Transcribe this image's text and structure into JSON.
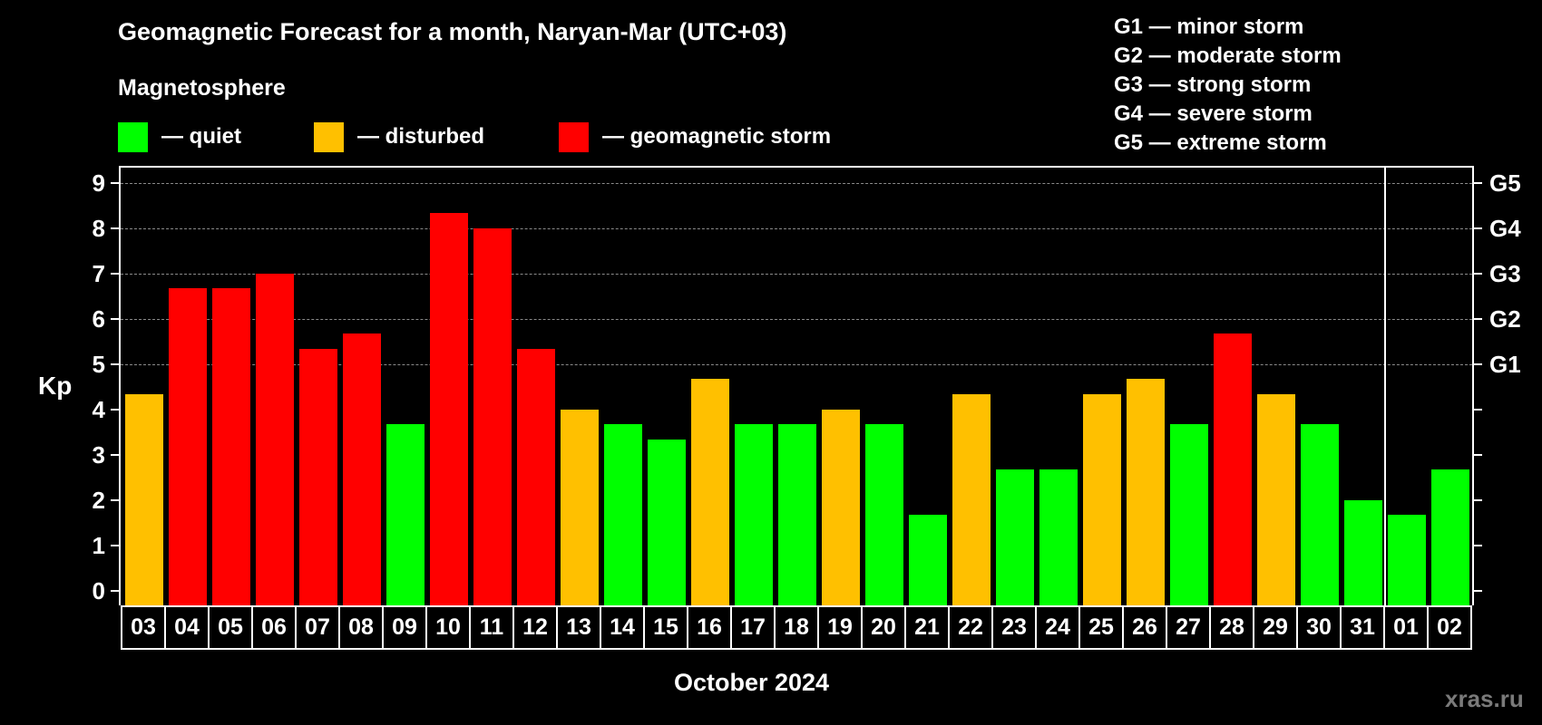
{
  "header": {
    "title": "Geomagnetic Forecast for a month, Naryan-Mar (UTC+03)",
    "subtitle": "Magnetosphere"
  },
  "legend": [
    {
      "label": "— quiet",
      "color": "#00ff00"
    },
    {
      "label": "— disturbed",
      "color": "#ffc000"
    },
    {
      "label": "— geomagnetic storm",
      "color": "#ff0000"
    }
  ],
  "g_legend": [
    "G1 — minor storm",
    "G2 — moderate storm",
    "G3 — strong storm",
    "G4 — severe storm",
    "G5 — extreme storm"
  ],
  "axes": {
    "ylabel": "Kp",
    "yticks": [
      "0",
      "1",
      "2",
      "3",
      "4",
      "5",
      "6",
      "7",
      "8",
      "9"
    ],
    "right_ticks": [
      {
        "kp": 5,
        "label": "G1"
      },
      {
        "kp": 6,
        "label": "G2"
      },
      {
        "kp": 7,
        "label": "G3"
      },
      {
        "kp": 8,
        "label": "G4"
      },
      {
        "kp": 9,
        "label": "G5"
      }
    ],
    "xlabel": "October 2024"
  },
  "watermark": "xras.ru",
  "colors": {
    "quiet": "#00ff00",
    "disturbed": "#ffc000",
    "storm": "#ff0000",
    "background": "#000000",
    "grid": "#8a8a8a"
  },
  "chart_data": {
    "type": "bar",
    "title": "Geomagnetic Forecast for a month, Naryan-Mar (UTC+03)",
    "xlabel": "October 2024",
    "ylabel": "Kp",
    "ylim": [
      0,
      9
    ],
    "grid": true,
    "legend_position": "top",
    "categories": [
      "03",
      "04",
      "05",
      "06",
      "07",
      "08",
      "09",
      "10",
      "11",
      "12",
      "13",
      "14",
      "15",
      "16",
      "17",
      "18",
      "19",
      "20",
      "21",
      "22",
      "23",
      "24",
      "25",
      "26",
      "27",
      "28",
      "29",
      "30",
      "31",
      "01",
      "02"
    ],
    "values": [
      4.33,
      6.67,
      6.67,
      7.0,
      5.33,
      5.67,
      3.67,
      8.33,
      8.0,
      5.33,
      4.0,
      3.67,
      3.33,
      4.67,
      3.67,
      3.67,
      4.0,
      3.67,
      1.67,
      4.33,
      2.67,
      2.67,
      4.33,
      4.67,
      3.67,
      5.67,
      4.33,
      3.67,
      2.0,
      1.67,
      2.67
    ],
    "levels": [
      "disturbed",
      "storm",
      "storm",
      "storm",
      "storm",
      "storm",
      "quiet",
      "storm",
      "storm",
      "storm",
      "disturbed",
      "quiet",
      "quiet",
      "disturbed",
      "quiet",
      "quiet",
      "disturbed",
      "quiet",
      "quiet",
      "disturbed",
      "quiet",
      "quiet",
      "disturbed",
      "disturbed",
      "quiet",
      "storm",
      "disturbed",
      "quiet",
      "quiet",
      "quiet",
      "quiet"
    ],
    "month_divider_after": "31",
    "right_axis": {
      "5": "G1",
      "6": "G2",
      "7": "G3",
      "8": "G4",
      "9": "G5"
    }
  }
}
